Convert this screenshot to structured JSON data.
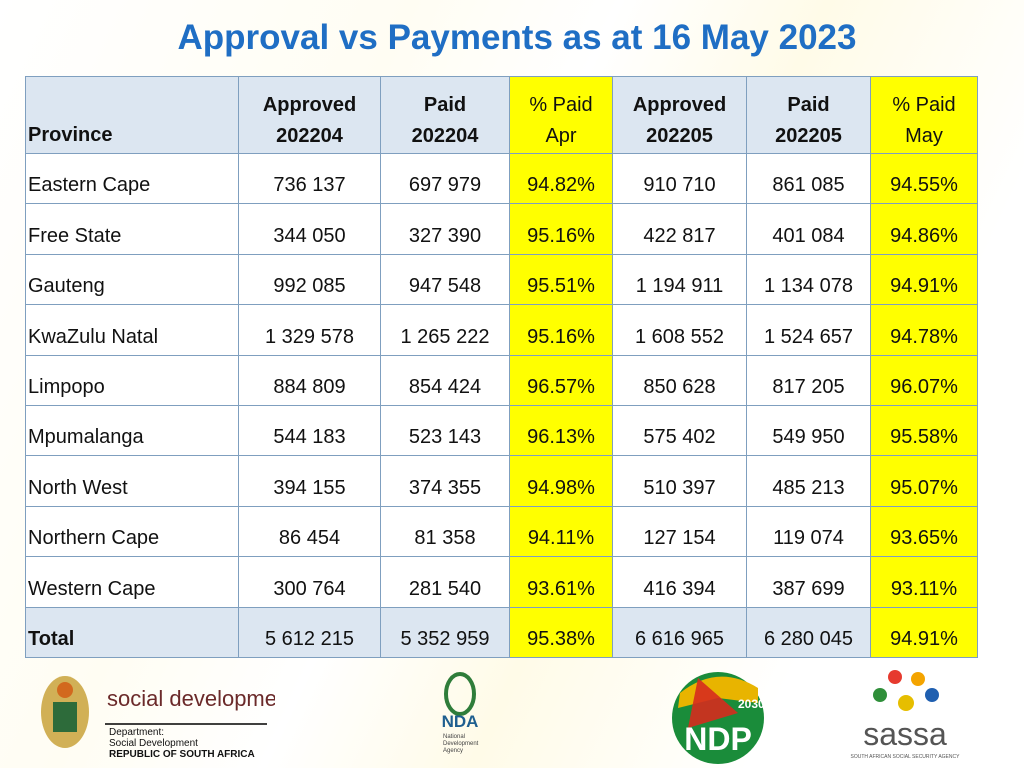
{
  "title": "Approval vs Payments as at 16 May 2023",
  "table": {
    "header": [
      [
        "Province"
      ],
      [
        "Approved",
        "202204"
      ],
      [
        "Paid",
        "202204"
      ],
      [
        "% Paid",
        "Apr"
      ],
      [
        "Approved",
        "202205"
      ],
      [
        "Paid",
        "202205"
      ],
      [
        "% Paid",
        "May"
      ]
    ],
    "rows": [
      [
        "Eastern Cape",
        "736 137",
        "697 979",
        "94.82%",
        "910 710",
        "861 085",
        "94.55%"
      ],
      [
        "Free State",
        "344 050",
        "327 390",
        "95.16%",
        "422 817",
        "401 084",
        "94.86%"
      ],
      [
        "Gauteng",
        "992 085",
        "947 548",
        "95.51%",
        "1 194 911",
        "1 134 078",
        "94.91%"
      ],
      [
        "KwaZulu Natal",
        "1 329 578",
        "1 265 222",
        "95.16%",
        "1 608 552",
        "1 524 657",
        "94.78%"
      ],
      [
        "Limpopo",
        "884 809",
        "854 424",
        "96.57%",
        "850 628",
        "817 205",
        "96.07%"
      ],
      [
        "Mpumalanga",
        "544 183",
        "523 143",
        "96.13%",
        "575 402",
        "549 950",
        "95.58%"
      ],
      [
        "North West",
        "394 155",
        "374 355",
        "94.98%",
        "510 397",
        "485 213",
        "95.07%"
      ],
      [
        "Northern Cape",
        "86 454",
        "81 358",
        "94.11%",
        "127 154",
        "119 074",
        "93.65%"
      ],
      [
        "Western Cape",
        "300 764",
        "281 540",
        "93.61%",
        "416 394",
        "387 699",
        "93.11%"
      ]
    ],
    "total": [
      "Total",
      "5 612 215",
      "5 352 959",
      "95.38%",
      "6 616 965",
      "6 280 045",
      "94.91%"
    ]
  },
  "logos": {
    "social_development": {
      "name": "social development",
      "lines": [
        "Department:",
        "Social Development",
        "REPUBLIC OF SOUTH AFRICA"
      ]
    },
    "nda": {
      "name": "NDA",
      "lines": [
        "National",
        "Development",
        "Agency"
      ]
    },
    "ndp": {
      "year": "2030",
      "name": "NDP"
    },
    "sassa": {
      "name": "sassa",
      "subtitle": "SOUTH AFRICAN SOCIAL SECURITY AGENCY"
    }
  }
}
